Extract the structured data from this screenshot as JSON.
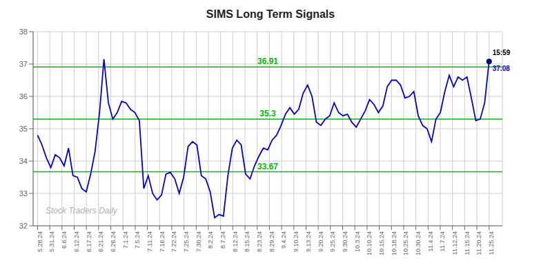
{
  "chart_data": {
    "type": "line",
    "title": "SIMS Long Term Signals",
    "color": "#0000cc",
    "grid": true,
    "xlim": [
      -1,
      105
    ],
    "xticks": [
      {
        "value": 0,
        "label": "5.28.24"
      },
      {
        "value": 2.7568,
        "label": "5.31.24"
      },
      {
        "value": 5.5135,
        "label": "6.6.24"
      },
      {
        "value": 8.2703,
        "label": "6.12.24"
      },
      {
        "value": 11.027,
        "label": "6.17.24"
      },
      {
        "value": 13.7838,
        "label": "6.21.24"
      },
      {
        "value": 16.5405,
        "label": "6.26.24"
      },
      {
        "value": 19.2973,
        "label": "7.1.24"
      },
      {
        "value": 22.0541,
        "label": "7.5.24"
      },
      {
        "value": 24.8108,
        "label": "7.11.24"
      },
      {
        "value": 27.5676,
        "label": "7.16.24"
      },
      {
        "value": 30.3243,
        "label": "7.22.24"
      },
      {
        "value": 33.0811,
        "label": "7.25.24"
      },
      {
        "value": 35.8378,
        "label": "7.30.24"
      },
      {
        "value": 38.5946,
        "label": "8.2.24"
      },
      {
        "value": 41.3514,
        "label": "8.7.24"
      },
      {
        "value": 44.1081,
        "label": "8.12.24"
      },
      {
        "value": 46.8649,
        "label": "8.15.24"
      },
      {
        "value": 49.6216,
        "label": "8.23.24"
      },
      {
        "value": 52.3784,
        "label": "8.29.24"
      },
      {
        "value": 55.1351,
        "label": "9.4.24"
      },
      {
        "value": 57.8919,
        "label": "9.10.24"
      },
      {
        "value": 60.6486,
        "label": "9.13.24"
      },
      {
        "value": 63.4054,
        "label": "9.20.24"
      },
      {
        "value": 66.1622,
        "label": "9.25.24"
      },
      {
        "value": 68.9189,
        "label": "9.30.24"
      },
      {
        "value": 71.6757,
        "label": "10.3.24"
      },
      {
        "value": 74.4324,
        "label": "10.10.24"
      },
      {
        "value": 77.1892,
        "label": "10.15.24"
      },
      {
        "value": 79.9459,
        "label": "10.18.24"
      },
      {
        "value": 82.7027,
        "label": "10.25.24"
      },
      {
        "value": 85.4595,
        "label": "10.30.24"
      },
      {
        "value": 88.2162,
        "label": "11.4.24"
      },
      {
        "value": 90.973,
        "label": "11.7.24"
      },
      {
        "value": 93.7297,
        "label": "11.12.24"
      },
      {
        "value": 96.4865,
        "label": "11.15.24"
      },
      {
        "value": 99.2432,
        "label": "11.20.24"
      },
      {
        "value": 102,
        "label": "11.25.24"
      }
    ],
    "ylim": [
      32,
      38
    ],
    "yticks": [
      32,
      33,
      34,
      35,
      36,
      37,
      38
    ],
    "x": [
      0,
      1,
      2,
      3,
      4,
      5,
      6,
      7,
      8,
      9,
      10,
      11,
      12,
      13,
      14,
      15,
      16,
      17,
      18,
      19,
      20,
      21,
      22,
      23,
      24,
      25,
      26,
      27,
      28,
      29,
      30,
      31,
      32,
      33,
      34,
      35,
      36,
      37,
      38,
      39,
      40,
      41,
      42,
      43,
      44,
      45,
      46,
      47,
      48,
      49,
      50,
      51,
      52,
      53,
      54,
      55,
      56,
      57,
      58,
      59,
      60,
      61,
      62,
      63,
      64,
      65,
      66,
      67,
      68,
      69,
      70,
      71,
      72,
      73,
      74,
      75,
      76,
      77,
      78,
      79,
      80,
      81,
      82,
      83,
      84,
      85,
      86,
      87,
      88,
      89,
      90,
      91,
      92,
      93,
      94,
      95,
      96,
      97,
      98,
      99,
      100,
      101,
      102
    ],
    "values": [
      34.8,
      34.5,
      34.1,
      33.8,
      34.2,
      34.1,
      33.85,
      34.4,
      33.55,
      33.5,
      33.15,
      33.05,
      33.6,
      34.3,
      35.5,
      37.15,
      35.8,
      35.3,
      35.5,
      35.85,
      35.8,
      35.6,
      35.5,
      35.25,
      33.15,
      33.55,
      33.0,
      32.8,
      32.95,
      33.6,
      33.65,
      33.45,
      33.0,
      33.5,
      34.45,
      34.6,
      34.5,
      33.55,
      33.45,
      33.05,
      32.25,
      32.35,
      32.3,
      33.55,
      34.4,
      34.65,
      34.5,
      33.6,
      33.45,
      33.85,
      34.15,
      34.4,
      34.35,
      34.65,
      34.8,
      35.1,
      35.45,
      35.65,
      35.45,
      35.6,
      36.1,
      36.35,
      36.0,
      35.2,
      35.1,
      35.3,
      35.4,
      35.8,
      35.5,
      35.4,
      35.45,
      35.2,
      35.05,
      35.3,
      35.55,
      35.9,
      35.75,
      35.5,
      35.7,
      36.3,
      36.5,
      36.5,
      36.35,
      35.95,
      36.0,
      36.15,
      35.4,
      35.1,
      35.0,
      34.6,
      35.3,
      35.5,
      36.15,
      36.65,
      36.3,
      36.6,
      36.5,
      36.6,
      35.95,
      35.25,
      35.3,
      35.8,
      37.08
    ],
    "hlines": [
      {
        "y": 36.91,
        "label": "36.91",
        "color": "#00bb00"
      },
      {
        "y": 35.3,
        "label": "35.3",
        "color": "#00bb00"
      },
      {
        "y": 33.67,
        "label": "33.67",
        "color": "#00bb00"
      }
    ],
    "end_point": {
      "x": 102,
      "y": 37.08,
      "color": "#000080",
      "labels": [
        "15:59",
        "37.08"
      ]
    },
    "watermark": "Stock Traders Daily"
  }
}
